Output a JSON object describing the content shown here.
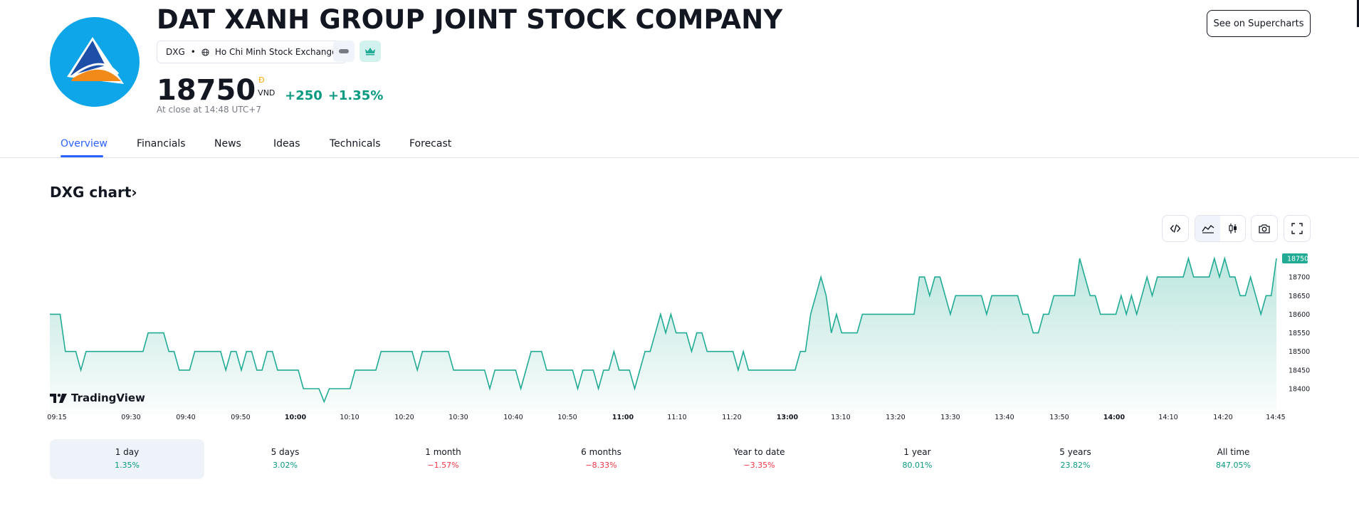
{
  "company": {
    "name": "DAT XANH GROUP JOINT STOCK COMPANY",
    "ticker": "DXG",
    "separator": "•",
    "exchange": "Ho Chi Minh Stock Exchange",
    "logo_colors": [
      "#0ea5e9",
      "#1e4fa8",
      "#f28a1a",
      "#ffffff"
    ]
  },
  "quote": {
    "price": "18750",
    "currency_symbol": "Đ",
    "currency_code": "VND",
    "change": "+250",
    "change_percent": "+1.35%",
    "close_note": "At close at 14:48 UTC+7"
  },
  "actions": {
    "supercharts_label": "See on Supercharts"
  },
  "tabs": [
    {
      "label": "Overview",
      "active": true
    },
    {
      "label": "Financials",
      "active": false
    },
    {
      "label": "News",
      "active": false
    },
    {
      "label": "Ideas",
      "active": false
    },
    {
      "label": "Technicals",
      "active": false
    },
    {
      "label": "Forecast",
      "active": false
    }
  ],
  "chart_section": {
    "title": "DXG chart",
    "title_chevron": "›",
    "toolbar_icons": [
      "embed-code-icon",
      "area-chart-icon",
      "candles-chart-icon",
      "camera-icon",
      "fullscreen-icon"
    ],
    "watermark": "TradingView"
  },
  "chart_data": {
    "type": "area",
    "x_ticks": [
      "09:15",
      "09:30",
      "09:40",
      "09:50",
      "10:00",
      "10:10",
      "10:20",
      "10:30",
      "10:40",
      "10:50",
      "11:00",
      "11:10",
      "11:20",
      "13:00",
      "13:10",
      "13:20",
      "13:30",
      "13:40",
      "13:50",
      "14:00",
      "14:10",
      "14:20",
      "14:45"
    ],
    "bold_x_ticks": [
      "10:00",
      "11:00",
      "13:00",
      "14:00"
    ],
    "y_ticks": [
      18400,
      18450,
      18500,
      18550,
      18600,
      18650,
      18700
    ],
    "ylim": [
      18375,
      18760
    ],
    "last_value_label": "18750",
    "line_color": "#22ab94",
    "series": [
      {
        "values": [
          18600,
          18600,
          18600,
          18500,
          18500,
          18500,
          18450,
          18500,
          18500,
          18500,
          18500,
          18500,
          18500,
          18500,
          18500,
          18500,
          18500,
          18500,
          18500,
          18550,
          18550,
          18550,
          18550,
          18500,
          18500,
          18450,
          18450,
          18450,
          18500,
          18500,
          18500,
          18500,
          18500,
          18500,
          18450,
          18500,
          18500,
          18450,
          18500,
          18500,
          18450,
          18450,
          18500,
          18500,
          18450,
          18450,
          18450,
          18450,
          18450,
          18400,
          18400,
          18400,
          18400,
          18365,
          18400,
          18400,
          18400,
          18400,
          18400,
          18450,
          18450,
          18450,
          18450,
          18450,
          18500,
          18500,
          18500,
          18500,
          18500,
          18500,
          18500,
          18450,
          18500,
          18500,
          18500,
          18500,
          18500,
          18500,
          18450,
          18450,
          18450,
          18450,
          18450,
          18450,
          18450,
          18400,
          18450,
          18450,
          18450,
          18450,
          18450,
          18400,
          18450,
          18500,
          18500,
          18500,
          18450,
          18450,
          18450,
          18450,
          18450,
          18450,
          18400,
          18450,
          18450,
          18450,
          18400,
          18450,
          18450,
          18500,
          18450,
          18450,
          18450,
          18400,
          18450,
          18500,
          18500,
          18550,
          18600,
          18550,
          18600,
          18550,
          18550,
          18550,
          18500,
          18550,
          18550,
          18500,
          18500,
          18500,
          18500,
          18500,
          18500,
          18450,
          18500,
          18450,
          18450,
          18450,
          18450,
          18450,
          18450,
          18450,
          18450,
          18450,
          18450,
          18500,
          18500,
          18600,
          18650,
          18700,
          18650,
          18550,
          18600,
          18550,
          18550,
          18550,
          18550,
          18600,
          18600,
          18600,
          18600,
          18600,
          18600,
          18600,
          18600,
          18600,
          18600,
          18600,
          18700,
          18700,
          18650,
          18700,
          18700,
          18650,
          18600,
          18650,
          18650,
          18650,
          18650,
          18650,
          18650,
          18600,
          18650,
          18650,
          18650,
          18650,
          18650,
          18650,
          18600,
          18600,
          18550,
          18550,
          18600,
          18600,
          18650,
          18650,
          18650,
          18650,
          18650,
          18750,
          18700,
          18650,
          18650,
          18600,
          18600,
          18600,
          18600,
          18650,
          18600,
          18650,
          18600,
          18650,
          18700,
          18650,
          18700,
          18700,
          18700,
          18700,
          18700,
          18700,
          18750,
          18700,
          18700,
          18700,
          18700,
          18750,
          18700,
          18750,
          18700,
          18700,
          18650,
          18650,
          18700,
          18650,
          18600,
          18650,
          18650,
          18750
        ]
      }
    ],
    "grid": false
  },
  "periods": [
    {
      "label": "1 day",
      "value": "1.35%",
      "dir": "up",
      "active": true
    },
    {
      "label": "5 days",
      "value": "3.02%",
      "dir": "up",
      "active": false
    },
    {
      "label": "1 month",
      "value": "−1.57%",
      "dir": "down",
      "active": false
    },
    {
      "label": "6 months",
      "value": "−8.33%",
      "dir": "down",
      "active": false
    },
    {
      "label": "Year to date",
      "value": "−3.35%",
      "dir": "down",
      "active": false
    },
    {
      "label": "1 year",
      "value": "80.01%",
      "dir": "up",
      "active": false
    },
    {
      "label": "5 years",
      "value": "23.82%",
      "dir": "up",
      "active": false
    },
    {
      "label": "All time",
      "value": "847.05%",
      "dir": "up",
      "active": false
    }
  ]
}
